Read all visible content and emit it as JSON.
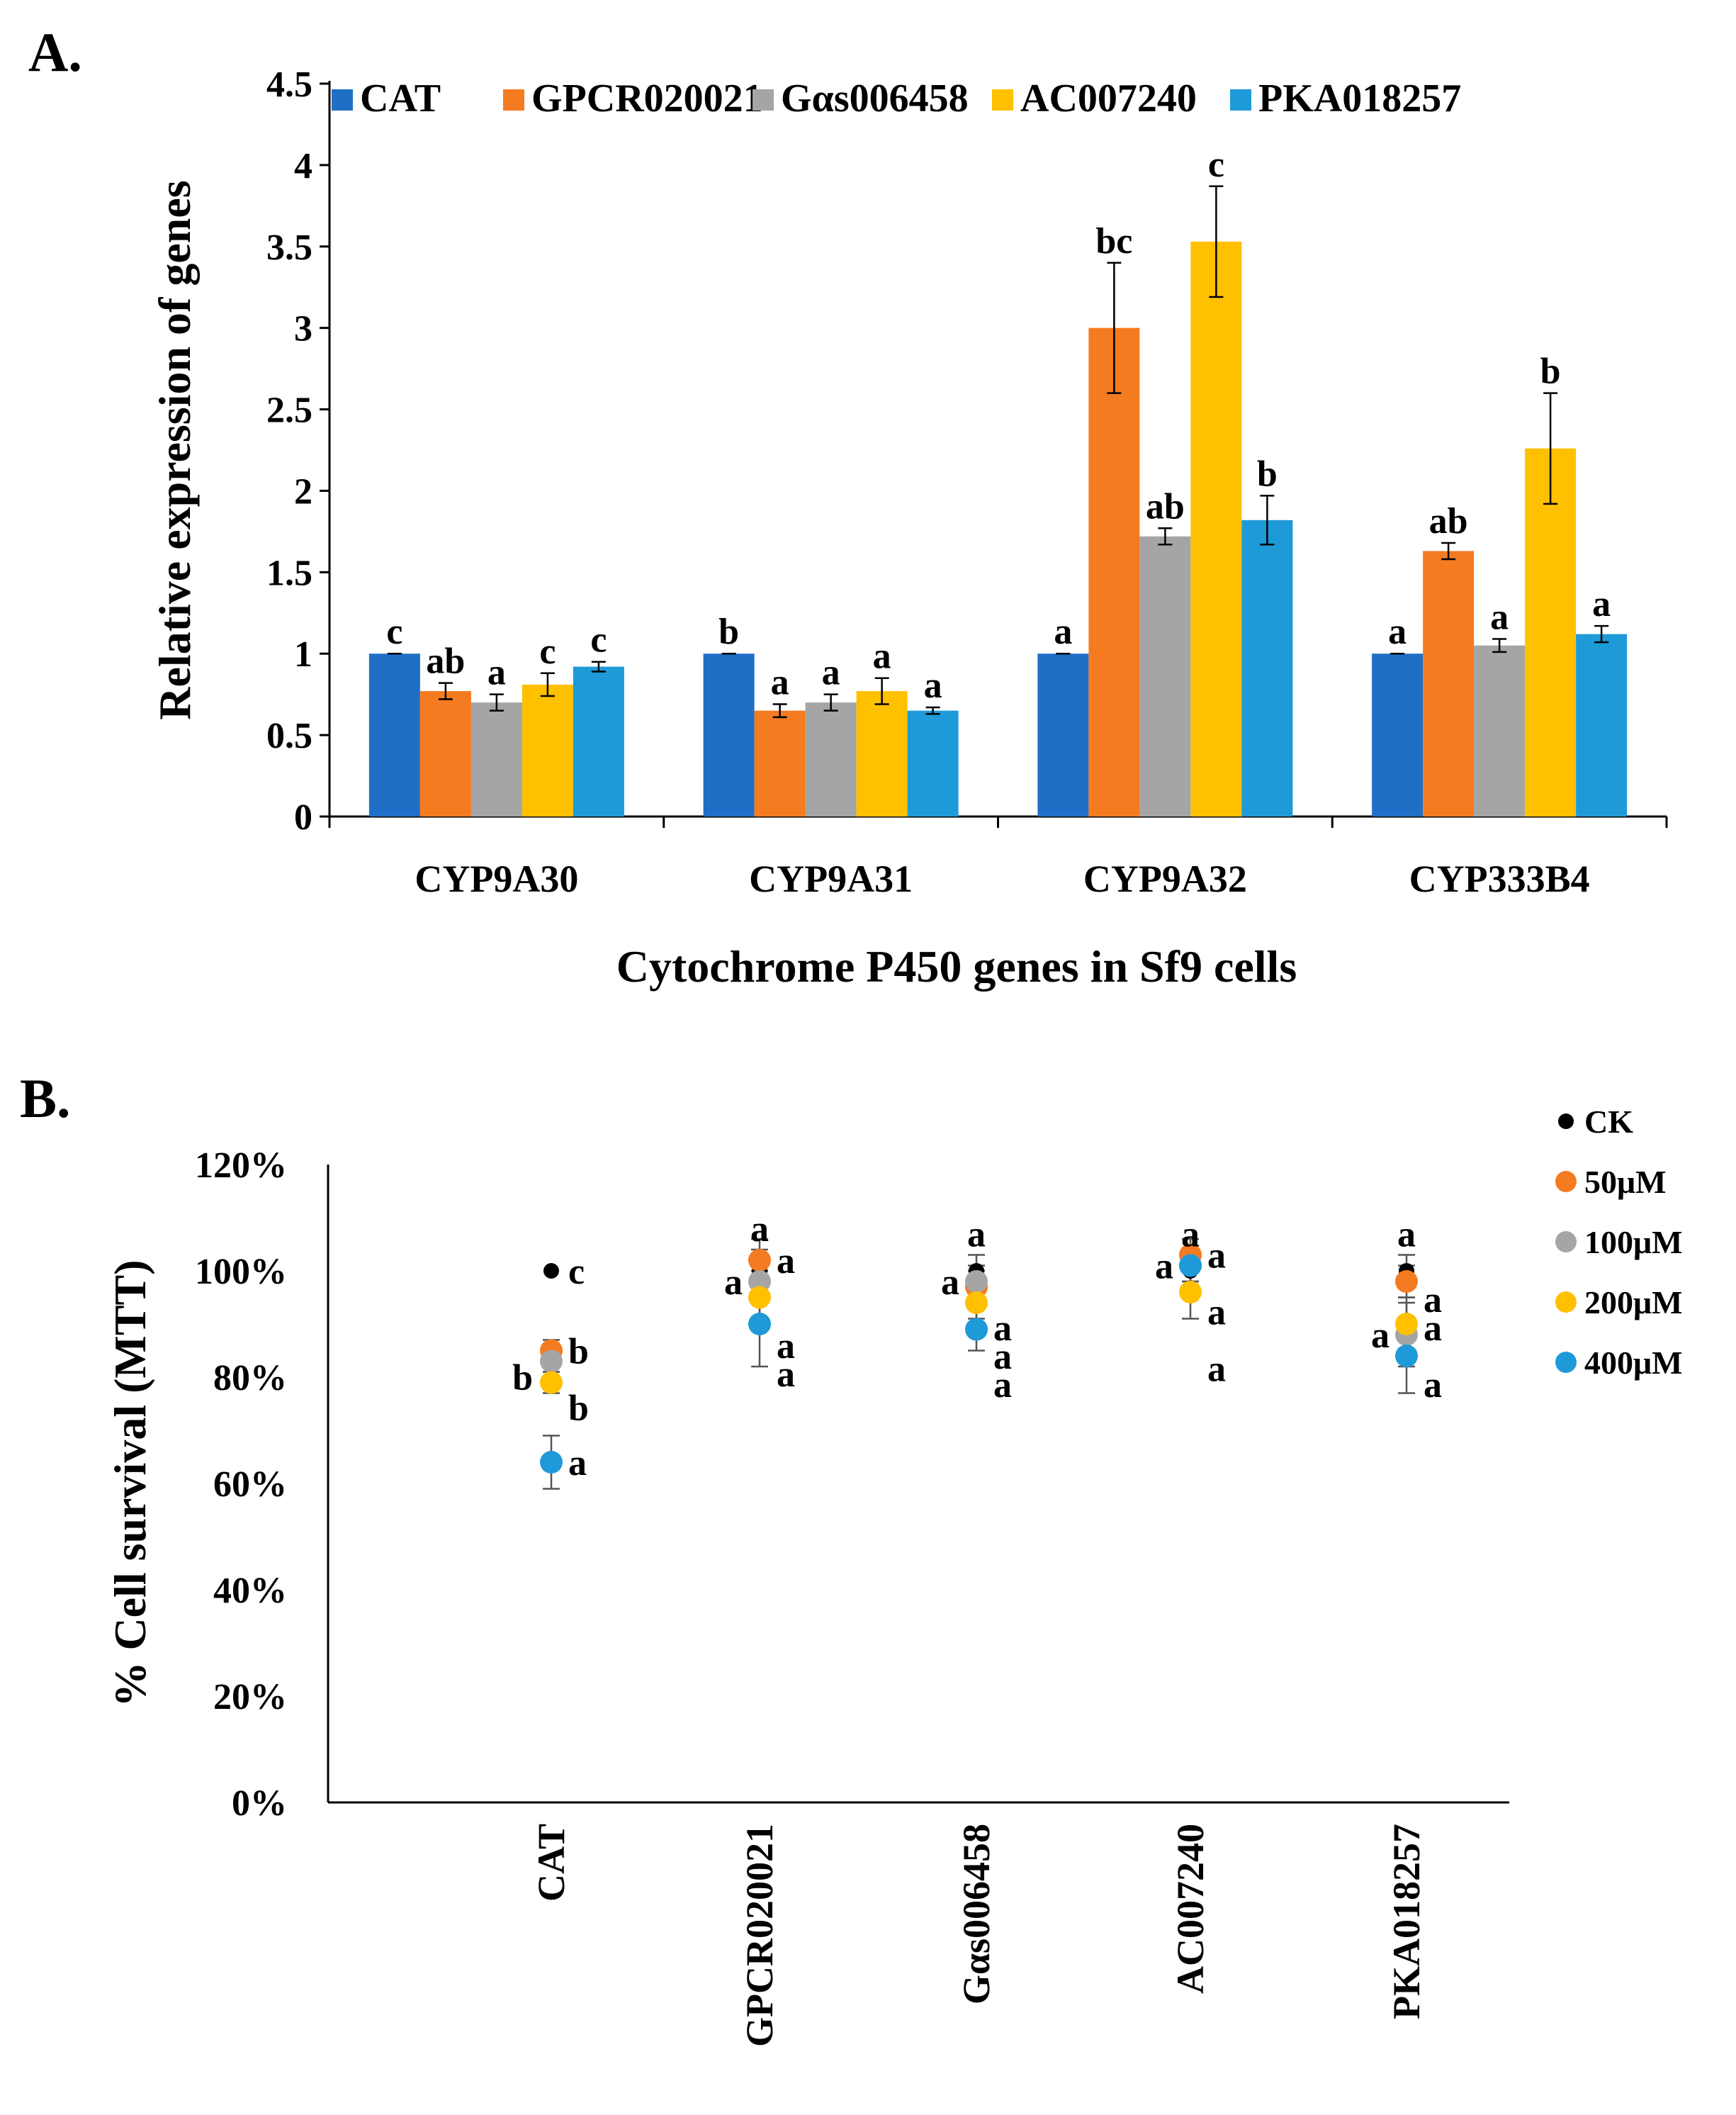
{
  "chart_data": [
    {
      "panel": "A.",
      "type": "bar",
      "ylabel": "Relative expression  of genes",
      "xlabel": "Cytochrome  P450 genes in Sf9 cells",
      "ylim": [
        0,
        4.5
      ],
      "yticks": [
        "0",
        "0.5",
        "1",
        "1.5",
        "2",
        "2.5",
        "3",
        "3.5",
        "4",
        "4.5"
      ],
      "categories": [
        "CYP9A30",
        "CYP9A31",
        "CYP9A32",
        "CYP333B4"
      ],
      "legend_position": "top",
      "series": [
        {
          "name": "CAT",
          "color": "#1f6fc7",
          "values": [
            1.0,
            1.0,
            1.0,
            1.0
          ],
          "errors": [
            0.0,
            0.0,
            0.0,
            0.0
          ],
          "letters": [
            "c",
            "b",
            "a",
            "a"
          ]
        },
        {
          "name": "GPCR020021",
          "color": "#f47b20",
          "values": [
            0.77,
            0.65,
            3.0,
            1.63
          ],
          "errors": [
            0.05,
            0.04,
            0.4,
            0.05
          ],
          "letters": [
            "ab",
            "a",
            "bc",
            "ab"
          ]
        },
        {
          "name": "Gαs006458",
          "color": "#a5a5a5",
          "values": [
            0.7,
            0.7,
            1.72,
            1.05
          ],
          "errors": [
            0.05,
            0.05,
            0.05,
            0.04
          ],
          "letters": [
            "a",
            "a",
            "ab",
            "a"
          ]
        },
        {
          "name": "AC007240",
          "color": "#ffc000",
          "values": [
            0.81,
            0.77,
            3.53,
            2.26
          ],
          "errors": [
            0.07,
            0.08,
            0.34,
            0.34
          ],
          "letters": [
            "c",
            "a",
            "c",
            "b"
          ]
        },
        {
          "name": "PKA018257",
          "color": "#1f9ad8",
          "values": [
            0.92,
            0.65,
            1.82,
            1.12
          ],
          "errors": [
            0.03,
            0.02,
            0.15,
            0.05
          ],
          "letters": [
            "c",
            "a",
            "b",
            "a"
          ]
        }
      ]
    },
    {
      "panel": "B.",
      "type": "scatter",
      "ylabel": "% Cell survival (MTT)",
      "ylim": [
        0,
        120
      ],
      "yticks": [
        "0%",
        "20%",
        "40%",
        "60%",
        "80%",
        "100%",
        "120%"
      ],
      "categories": [
        "CAT",
        "GPCR020021",
        "Gαs006458",
        "AC007240",
        "PKA018257"
      ],
      "legend_position": "right",
      "series": [
        {
          "name": "CK",
          "color": "#000000",
          "values": [
            100,
            100,
            100,
            100,
            100
          ],
          "errors": [
            0,
            4,
            3,
            3,
            3
          ],
          "letters": [
            "c",
            "a",
            "a",
            "a",
            "a"
          ]
        },
        {
          "name": "50μM",
          "color": "#f47b20",
          "values": [
            85,
            102,
            97,
            103,
            98
          ],
          "errors": [
            2,
            4,
            3,
            3,
            3
          ],
          "letters": [
            "b",
            "a",
            "a",
            "a",
            "a"
          ]
        },
        {
          "name": "100μM",
          "color": "#a5a5a5",
          "values": [
            83,
            98,
            98,
            101,
            88
          ],
          "errors": [
            2,
            4,
            3,
            3,
            6
          ],
          "letters": [
            "b",
            "a",
            "a",
            "a",
            "a"
          ]
        },
        {
          "name": "200μM",
          "color": "#ffc000",
          "values": [
            79,
            95,
            94,
            96,
            90
          ],
          "errors": [
            2,
            5,
            3,
            5,
            5
          ],
          "letters": [
            "b",
            "a",
            "a",
            "a",
            "a"
          ]
        },
        {
          "name": "400μM",
          "color": "#1f9ad8",
          "values": [
            64,
            90,
            89,
            101,
            84
          ],
          "errors": [
            5,
            8,
            4,
            3,
            7
          ],
          "letters": [
            "a",
            "a",
            "a",
            "a",
            "a"
          ]
        }
      ]
    }
  ]
}
